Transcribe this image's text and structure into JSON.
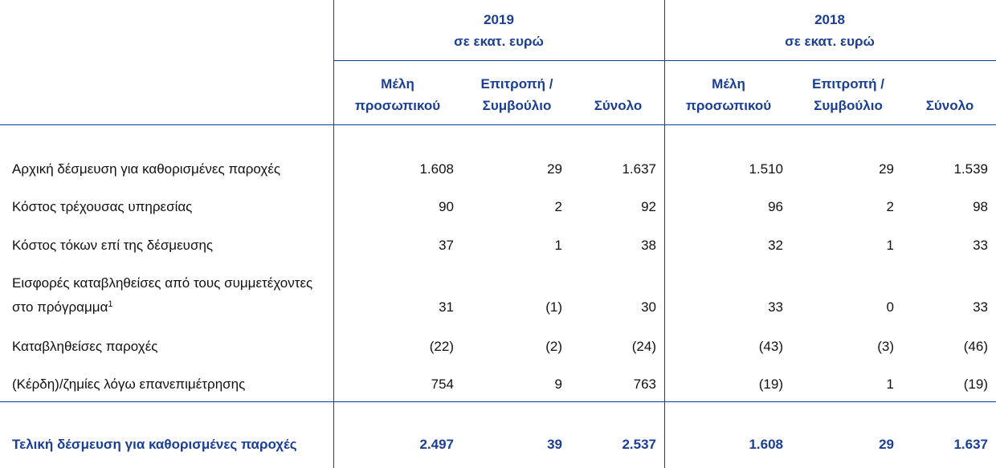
{
  "header": {
    "groups": [
      {
        "year": "2019",
        "unit": "σε εκατ. ευρώ"
      },
      {
        "year": "2018",
        "unit": "σε εκατ. ευρώ"
      }
    ],
    "columns": [
      "Μέλη προσωπικού",
      "Επιτροπή / Συμβούλιο",
      "Σύνολο",
      "Μέλη προσωπικού",
      "Επιτροπή / Συμβούλιο",
      "Σύνολο"
    ]
  },
  "table": {
    "rows": [
      {
        "label": "Αρχική δέσμευση για καθορισμένες παροχές",
        "values": [
          "1.608",
          "29",
          "1.637",
          "1.510",
          "29",
          "1.539"
        ]
      },
      {
        "label": "Κόστος τρέχουσας υπηρεσίας",
        "values": [
          "90",
          "2",
          "92",
          "96",
          "2",
          "98"
        ]
      },
      {
        "label": "Κόστος τόκων επί της δέσμευσης",
        "values": [
          "37",
          "1",
          "38",
          "32",
          "1",
          "33"
        ]
      },
      {
        "label": "Εισφορές καταβληθείσες από τους συμμετέχοντες στο πρόγραμμα",
        "footnote": "1",
        "values": [
          "31",
          "(1)",
          "30",
          "33",
          "0",
          "33"
        ]
      },
      {
        "label": "Καταβληθείσες παροχές",
        "values": [
          "(22)",
          "(2)",
          "(24)",
          "(43)",
          "(3)",
          "(46)"
        ]
      },
      {
        "label": "(Κέρδη)/ζημίες λόγω επανεπιμέτρησης",
        "values": [
          "754",
          "9",
          "763",
          "(19)",
          "1",
          "(19)"
        ]
      }
    ],
    "total": {
      "label": "Τελική δέσμευση για καθορισμένες παροχές",
      "values": [
        "2.497",
        "39",
        "2.537",
        "1.608",
        "29",
        "1.637"
      ]
    }
  }
}
